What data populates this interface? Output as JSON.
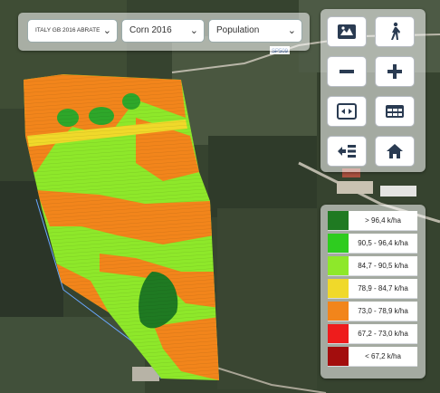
{
  "toolbar": {
    "farm_select": "ITALY GB 2016 ABRATE",
    "crop_select": "Corn 2016",
    "layer_select": "Population"
  },
  "map": {
    "road_label": "SP509"
  },
  "controls": {
    "buttons": [
      "satellite-toggle",
      "walk-mode",
      "zoom-out",
      "zoom-in",
      "fit-bounds",
      "table-view",
      "layer-list",
      "home"
    ]
  },
  "legend": {
    "items": [
      {
        "label": "> 96,4 k/ha",
        "color": "#1f7a22"
      },
      {
        "label": "90,5 - 96,4 k/ha",
        "color": "#2ecc1f"
      },
      {
        "label": "84,7 - 90,5 k/ha",
        "color": "#8ee82a"
      },
      {
        "label": "78,9 - 84,7 k/ha",
        "color": "#f0d92a"
      },
      {
        "label": "73,0 - 78,9 k/ha",
        "color": "#f2851b"
      },
      {
        "label": "67,2 - 73,0 k/ha",
        "color": "#ee1c1c"
      },
      {
        "label": "< 67,2 k/ha",
        "color": "#a30d0d"
      }
    ]
  }
}
